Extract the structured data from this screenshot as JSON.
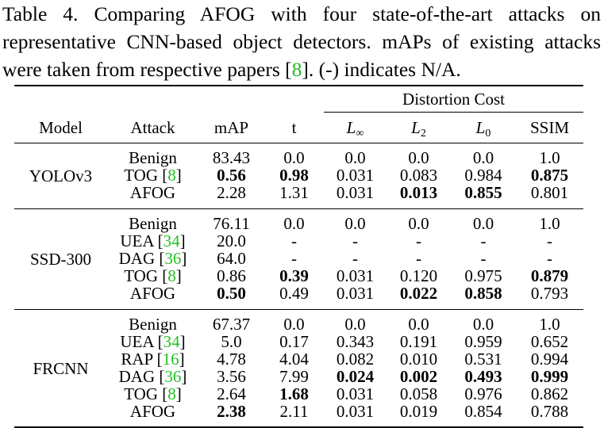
{
  "caption": {
    "before": "Table 4. Comparing AFOG with four state-of-the-art attacks on representative CNN-based object detectors. mAPs of existing attacks were taken from respective papers [",
    "cite": "8",
    "after": "]. (-) indicates N/A."
  },
  "table": {
    "group_header": "Distortion Cost",
    "columns": [
      {
        "text": "Model"
      },
      {
        "text": "Attack"
      },
      {
        "text": "mAP"
      },
      {
        "text": "t"
      },
      {
        "base": "L",
        "sub": "∞"
      },
      {
        "base": "L",
        "sub": "2"
      },
      {
        "base": "L",
        "sub": "0"
      },
      {
        "text": "SSIM"
      }
    ],
    "groups": [
      {
        "model": "YOLOv3",
        "rows": [
          {
            "attack": [
              "Benign"
            ],
            "cells": [
              "83.43",
              "0.0",
              "0.0",
              "0.0",
              "0.0",
              "1.0"
            ],
            "bold": []
          },
          {
            "attack": [
              "TOG [",
              "8",
              "]"
            ],
            "cells": [
              "0.56",
              "0.98",
              "0.031",
              "0.083",
              "0.984",
              "0.875"
            ],
            "bold": [
              0,
              1,
              5
            ]
          },
          {
            "attack": [
              "AFOG"
            ],
            "cells": [
              "2.28",
              "1.31",
              "0.031",
              "0.013",
              "0.855",
              "0.801"
            ],
            "bold": [
              3,
              4
            ]
          }
        ]
      },
      {
        "model": "SSD-300",
        "rows": [
          {
            "attack": [
              "Benign"
            ],
            "cells": [
              "76.11",
              "0.0",
              "0.0",
              "0.0",
              "0.0",
              "1.0"
            ],
            "bold": []
          },
          {
            "attack": [
              "UEA [",
              "34",
              "]"
            ],
            "cells": [
              "20.0",
              "-",
              "-",
              "-",
              "-",
              "-"
            ],
            "bold": []
          },
          {
            "attack": [
              "DAG [",
              "36",
              "]"
            ],
            "cells": [
              "64.0",
              "-",
              "-",
              "-",
              "-",
              "-"
            ],
            "bold": []
          },
          {
            "attack": [
              "TOG [",
              "8",
              "]"
            ],
            "cells": [
              "0.86",
              "0.39",
              "0.031",
              "0.120",
              "0.975",
              "0.879"
            ],
            "bold": [
              1,
              5
            ]
          },
          {
            "attack": [
              "AFOG"
            ],
            "cells": [
              "0.50",
              "0.49",
              "0.031",
              "0.022",
              "0.858",
              "0.793"
            ],
            "bold": [
              0,
              3,
              4
            ]
          }
        ]
      },
      {
        "model": "FRCNN",
        "rows": [
          {
            "attack": [
              "Benign"
            ],
            "cells": [
              "67.37",
              "0.0",
              "0.0",
              "0.0",
              "0.0",
              "1.0"
            ],
            "bold": []
          },
          {
            "attack": [
              "UEA [",
              "34",
              "]"
            ],
            "cells": [
              "5.0",
              "0.17",
              "0.343",
              "0.191",
              "0.959",
              "0.652"
            ],
            "bold": []
          },
          {
            "attack": [
              "RAP [",
              "16",
              "]"
            ],
            "cells": [
              "4.78",
              "4.04",
              "0.082",
              "0.010",
              "0.531",
              "0.994"
            ],
            "bold": []
          },
          {
            "attack": [
              "DAG [",
              "36",
              "]"
            ],
            "cells": [
              "3.56",
              "7.99",
              "0.024",
              "0.002",
              "0.493",
              "0.999"
            ],
            "bold": [
              2,
              3,
              4,
              5
            ]
          },
          {
            "attack": [
              "TOG [",
              "8",
              "]"
            ],
            "cells": [
              "2.64",
              "1.68",
              "0.031",
              "0.058",
              "0.976",
              "0.862"
            ],
            "bold": [
              1
            ]
          },
          {
            "attack": [
              "AFOG"
            ],
            "cells": [
              "2.38",
              "2.11",
              "0.031",
              "0.019",
              "0.854",
              "0.788"
            ],
            "bold": [
              0
            ]
          }
        ]
      }
    ]
  }
}
